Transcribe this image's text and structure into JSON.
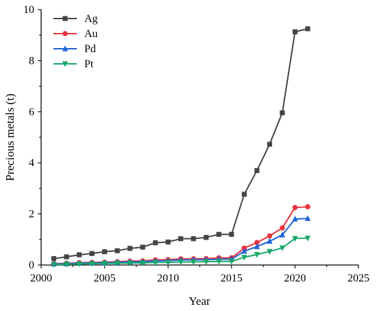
{
  "chart_data": {
    "type": "line",
    "title": "",
    "xlabel": "Year",
    "ylabel": "Precious metals (t)",
    "xlim": [
      2000,
      2025
    ],
    "ylim": [
      0,
      10
    ],
    "xticks": [
      2000,
      2005,
      2010,
      2015,
      2020,
      2025
    ],
    "yticks": [
      0,
      2,
      4,
      6,
      8,
      10
    ],
    "grid": false,
    "legend_position": "top-left",
    "x": [
      2001,
      2002,
      2003,
      2004,
      2005,
      2006,
      2007,
      2008,
      2009,
      2010,
      2011,
      2012,
      2013,
      2014,
      2015,
      2016,
      2017,
      2018,
      2019,
      2020,
      2021
    ],
    "series": [
      {
        "name": "Ag",
        "color": "#454545",
        "marker": "square",
        "values": [
          0.25,
          0.32,
          0.4,
          0.45,
          0.52,
          0.56,
          0.65,
          0.7,
          0.87,
          0.9,
          1.03,
          1.03,
          1.08,
          1.2,
          1.2,
          2.77,
          3.7,
          4.73,
          5.96,
          9.13,
          9.25
        ]
      },
      {
        "name": "Au",
        "color": "#e8343c",
        "marker": "circle",
        "values": [
          0.05,
          0.07,
          0.09,
          0.1,
          0.11,
          0.13,
          0.15,
          0.16,
          0.2,
          0.21,
          0.24,
          0.24,
          0.25,
          0.28,
          0.28,
          0.66,
          0.88,
          1.14,
          1.45,
          2.25,
          2.28
        ]
      },
      {
        "name": "Pd",
        "color": "#1e64d6",
        "marker": "triangle-up",
        "values": [
          0.04,
          0.05,
          0.07,
          0.08,
          0.09,
          0.1,
          0.12,
          0.13,
          0.16,
          0.17,
          0.2,
          0.2,
          0.21,
          0.23,
          0.23,
          0.54,
          0.72,
          0.93,
          1.18,
          1.8,
          1.82
        ]
      },
      {
        "name": "Pt",
        "color": "#18a86a",
        "marker": "triangle-down",
        "values": [
          0.02,
          0.03,
          0.04,
          0.05,
          0.06,
          0.07,
          0.08,
          0.08,
          0.1,
          0.1,
          0.12,
          0.12,
          0.13,
          0.14,
          0.14,
          0.3,
          0.41,
          0.53,
          0.67,
          1.04,
          1.05
        ]
      }
    ]
  }
}
